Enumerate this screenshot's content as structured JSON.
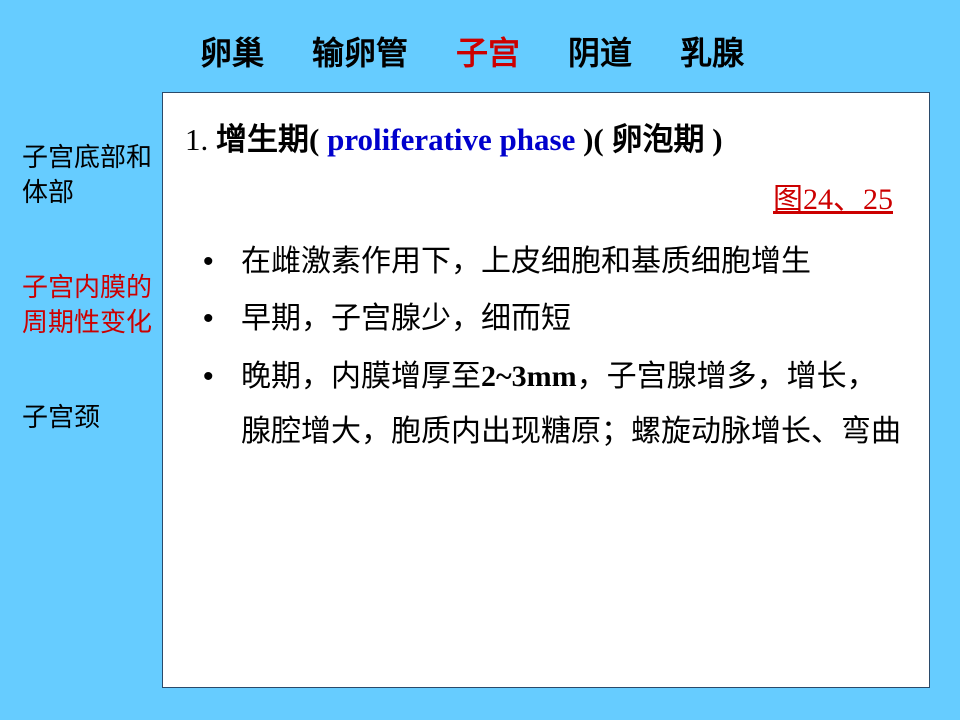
{
  "nav": {
    "items": [
      {
        "label": "卵巢",
        "active": false
      },
      {
        "label": "输卵管",
        "active": false
      },
      {
        "label": "子宫",
        "active": true
      },
      {
        "label": "阴道",
        "active": false
      },
      {
        "label": "乳腺",
        "active": false
      }
    ]
  },
  "sidebar": {
    "items": [
      {
        "label": "子宫底部和体部",
        "active": false
      },
      {
        "label": "子宫内膜的周期性变化",
        "active": true
      },
      {
        "label": "子宫颈",
        "active": false
      }
    ]
  },
  "content": {
    "heading_num": "1. ",
    "heading_zh1": "增生期",
    "heading_paren1": "( ",
    "heading_en": "proliferative  phase",
    "heading_paren2": " )( ",
    "heading_zh2": "卵泡期",
    "heading_paren3": " )",
    "fig_prefix": "图",
    "fig_nums": "24、25",
    "bullets": [
      {
        "html": "在雌激素作用下，上皮细胞和基质细胞增生"
      },
      {
        "html": "早期，子宫腺少，细而短"
      },
      {
        "html": "晚期，内膜增厚至<span class=\"latin\">2~3mm</span>，子宫腺增多，增长，腺腔增大，胞质内出现糖原；螺旋动脉增长、弯曲"
      }
    ]
  },
  "colors": {
    "bg": "#66ccff",
    "box_bg": "#ffffff",
    "accent": "#cc0000",
    "link_blue": "#0000cc",
    "text": "#000000"
  }
}
